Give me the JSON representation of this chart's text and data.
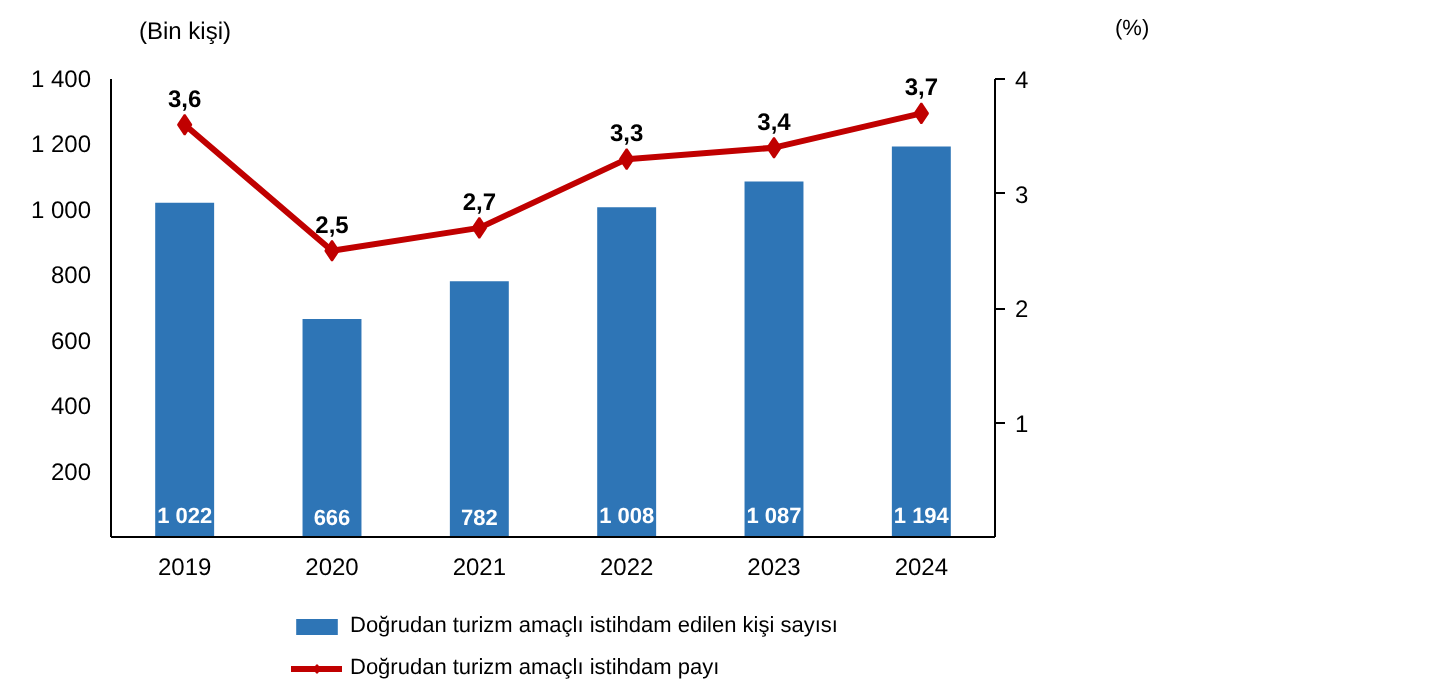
{
  "chart_data": {
    "type": "bar",
    "categories": [
      "2019",
      "2020",
      "2021",
      "2022",
      "2023",
      "2024"
    ],
    "series": [
      {
        "name": "Doğrudan turizm amaçlı istihdam edilen kişi sayısı",
        "color": "#2e75b6",
        "values": [
          1022,
          666,
          782,
          1008,
          1087,
          1194
        ],
        "value_labels": [
          "1 022",
          "666",
          "782",
          "1 008",
          "1 087",
          "1 194"
        ]
      },
      {
        "name": "Doğrudan turizm amaçlı istihdam payı",
        "type": "line",
        "axis": "y2",
        "color": "#c00000",
        "values": [
          3.6,
          2.5,
          2.7,
          3.3,
          3.4,
          3.7
        ],
        "value_labels": [
          "3,6",
          "2,5",
          "2,7",
          "3,3",
          "3,4",
          "3,7"
        ]
      }
    ],
    "ylabel": "(Bin kişi)",
    "y2label": "(%)",
    "ylim": [
      0,
      1400
    ],
    "yticks": [
      200,
      400,
      600,
      800,
      {
        "value": 1000,
        "label": "1 000"
      },
      {
        "value": 1200,
        "label": "1 200"
      },
      {
        "value": 1400,
        "label": "1 400"
      }
    ],
    "y2lim": [
      0,
      4
    ],
    "y2ticks": [
      1,
      2,
      3,
      4
    ],
    "marker": "diamond",
    "legend": "bottom"
  }
}
